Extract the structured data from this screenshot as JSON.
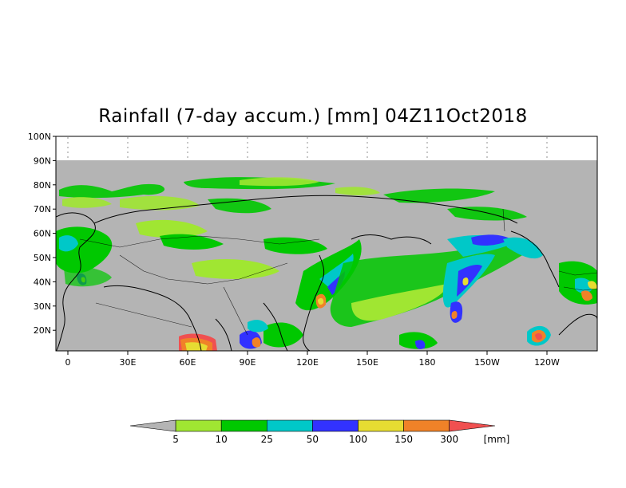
{
  "title": "Rainfall (7-day accum.) [mm] 04Z11Oct2018",
  "map": {
    "lat_labels": [
      "100N",
      "90N",
      "80N",
      "70N",
      "60N",
      "50N",
      "40N",
      "30N",
      "20N"
    ],
    "lon_labels": [
      "0",
      "30E",
      "60E",
      "90E",
      "120E",
      "150E",
      "180",
      "150W",
      "120W"
    ],
    "nodata_color": "#b4b4b4",
    "land_outline_color": "#000000"
  },
  "colorbar": {
    "unit": "[mm]",
    "levels": [
      "5",
      "10",
      "25",
      "50",
      "100",
      "150",
      "300"
    ],
    "colors": [
      "#b4b4b4",
      "#a0e632",
      "#00c800",
      "#00c8c8",
      "#3232ff",
      "#e6dc32",
      "#f08228",
      "#f05050"
    ]
  }
}
